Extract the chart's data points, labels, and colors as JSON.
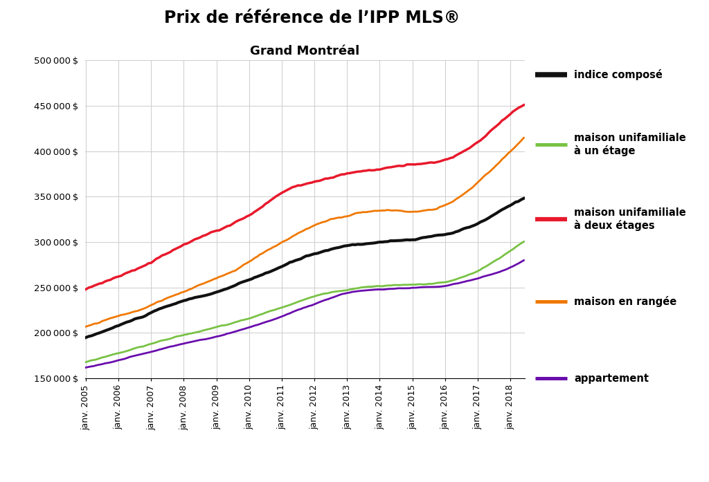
{
  "title_line1": "Prix de référence de l’IPP MLS®",
  "title_line2": "Grand Montréal",
  "ylim": [
    150000,
    500000
  ],
  "yticks": [
    150000,
    200000,
    250000,
    300000,
    350000,
    400000,
    450000,
    500000
  ],
  "series": {
    "indice_compose": {
      "label": "indice composé",
      "color": "#111111",
      "linewidth": 3.0,
      "keypoints": [
        [
          0,
          195000
        ],
        [
          12,
          208000
        ],
        [
          24,
          222000
        ],
        [
          36,
          235000
        ],
        [
          48,
          245000
        ],
        [
          60,
          258000
        ],
        [
          72,
          273000
        ],
        [
          84,
          287000
        ],
        [
          96,
          296000
        ],
        [
          108,
          300000
        ],
        [
          120,
          303000
        ],
        [
          132,
          308000
        ],
        [
          144,
          320000
        ],
        [
          156,
          340000
        ],
        [
          161,
          348000
        ]
      ]
    },
    "unifamiliale_1etage": {
      "label": "maison unifamiliale\nà un étage",
      "color": "#78c244",
      "linewidth": 2.0,
      "keypoints": [
        [
          0,
          168000
        ],
        [
          12,
          178000
        ],
        [
          24,
          188000
        ],
        [
          36,
          198000
        ],
        [
          48,
          206000
        ],
        [
          60,
          216000
        ],
        [
          72,
          228000
        ],
        [
          84,
          240000
        ],
        [
          96,
          248000
        ],
        [
          108,
          252000
        ],
        [
          120,
          253000
        ],
        [
          132,
          256000
        ],
        [
          144,
          268000
        ],
        [
          156,
          290000
        ],
        [
          161,
          300000
        ]
      ]
    },
    "unifamiliale_2etages": {
      "label": "maison unifamiliale\nà deux étages",
      "color": "#e8192c",
      "linewidth": 2.5,
      "keypoints": [
        [
          0,
          248000
        ],
        [
          12,
          262000
        ],
        [
          24,
          278000
        ],
        [
          36,
          298000
        ],
        [
          48,
          312000
        ],
        [
          60,
          330000
        ],
        [
          72,
          355000
        ],
        [
          84,
          367000
        ],
        [
          96,
          375000
        ],
        [
          108,
          380000
        ],
        [
          120,
          385000
        ],
        [
          132,
          390000
        ],
        [
          144,
          410000
        ],
        [
          156,
          440000
        ],
        [
          161,
          450000
        ]
      ]
    },
    "rangee": {
      "label": "maison en rangée",
      "color": "#f07800",
      "linewidth": 2.0,
      "keypoints": [
        [
          0,
          207000
        ],
        [
          12,
          218000
        ],
        [
          24,
          230000
        ],
        [
          36,
          246000
        ],
        [
          48,
          260000
        ],
        [
          60,
          278000
        ],
        [
          72,
          300000
        ],
        [
          84,
          318000
        ],
        [
          96,
          330000
        ],
        [
          108,
          335000
        ],
        [
          120,
          335000
        ],
        [
          132,
          340000
        ],
        [
          144,
          365000
        ],
        [
          156,
          400000
        ],
        [
          161,
          415000
        ]
      ]
    },
    "appartement": {
      "label": "appartement",
      "color": "#6a0dad",
      "linewidth": 2.0,
      "keypoints": [
        [
          0,
          162000
        ],
        [
          12,
          170000
        ],
        [
          24,
          179000
        ],
        [
          36,
          188000
        ],
        [
          48,
          196000
        ],
        [
          60,
          206000
        ],
        [
          72,
          218000
        ],
        [
          84,
          232000
        ],
        [
          96,
          244000
        ],
        [
          108,
          248000
        ],
        [
          120,
          250000
        ],
        [
          132,
          252000
        ],
        [
          144,
          260000
        ],
        [
          156,
          272000
        ],
        [
          161,
          280000
        ]
      ]
    }
  },
  "n_months": 162,
  "noise_seeds": {
    "indice_compose": 10,
    "unifamiliale_1etage": 20,
    "unifamiliale_2etages": 30,
    "rangee": 40,
    "appartement": 50
  },
  "noise_scale": {
    "indice_compose": 1800,
    "unifamiliale_1etage": 1200,
    "unifamiliale_2etages": 2500,
    "rangee": 2200,
    "appartement": 900
  },
  "background_color": "#ffffff",
  "grid_color": "#cccccc",
  "legend_labels": {
    "indice_compose": "indice composé",
    "unifamiliale_1etage": "maison unifamiliale à un étage",
    "unifamiliale_2etages": "maison unifamiliale à deux étages",
    "rangee": "maison en rangée",
    "appartement": "appartement"
  }
}
